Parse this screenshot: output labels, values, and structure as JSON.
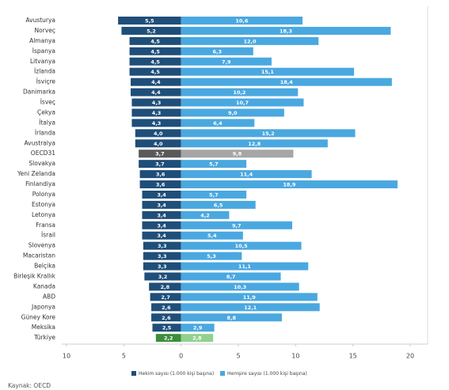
{
  "chart_data": {
    "type": "diverging-bar",
    "categories": [
      "Avusturya",
      "Norveç",
      "Almanya",
      "İspanya",
      "Litvanya",
      "İzlanda",
      "İsviçre",
      "Danimarka",
      "İsveç",
      "Çekya",
      "İtalya",
      "İrlanda",
      "Avustralya",
      "OECD31",
      "Slovakya",
      "Yeni Zelanda",
      "Finlandiya",
      "Polonya",
      "Estonya",
      "Letonya",
      "Fransa",
      "İsrail",
      "Slovenya",
      "Macaristan",
      "Belçika",
      "Birleşik Krallık",
      "Kanada",
      "ABD",
      "Japonya",
      "Güney Kore",
      "Meksika",
      "Türkiye"
    ],
    "series": [
      {
        "name": "Hekim sayısı (1.000 kişi başına)",
        "side": "left",
        "color": "#1f4e79",
        "values": [
          5.5,
          5.2,
          4.5,
          4.5,
          4.5,
          4.5,
          4.4,
          4.4,
          4.3,
          4.3,
          4.3,
          4.0,
          4.0,
          3.7,
          3.7,
          3.6,
          3.6,
          3.4,
          3.4,
          3.4,
          3.4,
          3.4,
          3.3,
          3.3,
          3.3,
          3.2,
          2.8,
          2.7,
          2.6,
          2.6,
          2.5,
          2.2
        ],
        "value_labels": [
          "5,5",
          "5,2",
          "4,5",
          "4,5",
          "4,5",
          "4,5",
          "4,4",
          "4,4",
          "4,3",
          "4,3",
          "4,3",
          "4,0",
          "4,0",
          "3,7",
          "3,7",
          "3,6",
          "3,6",
          "3,4",
          "3,4",
          "3,4",
          "3,4",
          "3,4",
          "3,3",
          "3,3",
          "3,3",
          "3,2",
          "2,8",
          "2,7",
          "2,6",
          "2,6",
          "2,5",
          "2,2"
        ],
        "point_colors": {
          "13": "#595959",
          "31": "#3c8d3c"
        }
      },
      {
        "name": "Hemşire sayısı (1.000 kişi başına)",
        "side": "right",
        "color": "#4aa8e0",
        "values": [
          10.6,
          18.3,
          12.0,
          6.3,
          7.9,
          15.1,
          18.4,
          10.2,
          10.7,
          9.0,
          6.4,
          15.2,
          12.8,
          9.8,
          5.7,
          11.4,
          18.9,
          5.7,
          6.5,
          4.2,
          9.7,
          5.4,
          10.5,
          5.3,
          11.1,
          8.7,
          10.3,
          11.9,
          12.1,
          8.8,
          2.9,
          2.8
        ],
        "value_labels": [
          "10,6",
          "18,3",
          "12,0",
          "6,3",
          "7,9",
          "15,1",
          "18,4",
          "10,2",
          "10,7",
          "9,0",
          "6,4",
          "15,2",
          "12,8",
          "9,8",
          "5,7",
          "11,4",
          "18,9",
          "5,7",
          "6,5",
          "4,2",
          "9,7",
          "5,4",
          "10,5",
          "5,3",
          "11,1",
          "8,7",
          "10,3",
          "11,9",
          "12,1",
          "8,8",
          "2,9",
          "2,8"
        ],
        "point_colors": {
          "13": "#a6a6a6",
          "31": "#92d18e"
        }
      }
    ],
    "xlim": [
      -10,
      20
    ],
    "xticks": [
      {
        "value": -10,
        "label": "10"
      },
      {
        "value": -5,
        "label": "5"
      },
      0,
      5,
      10,
      15,
      20
    ],
    "source": "Kaynak: OECD"
  }
}
